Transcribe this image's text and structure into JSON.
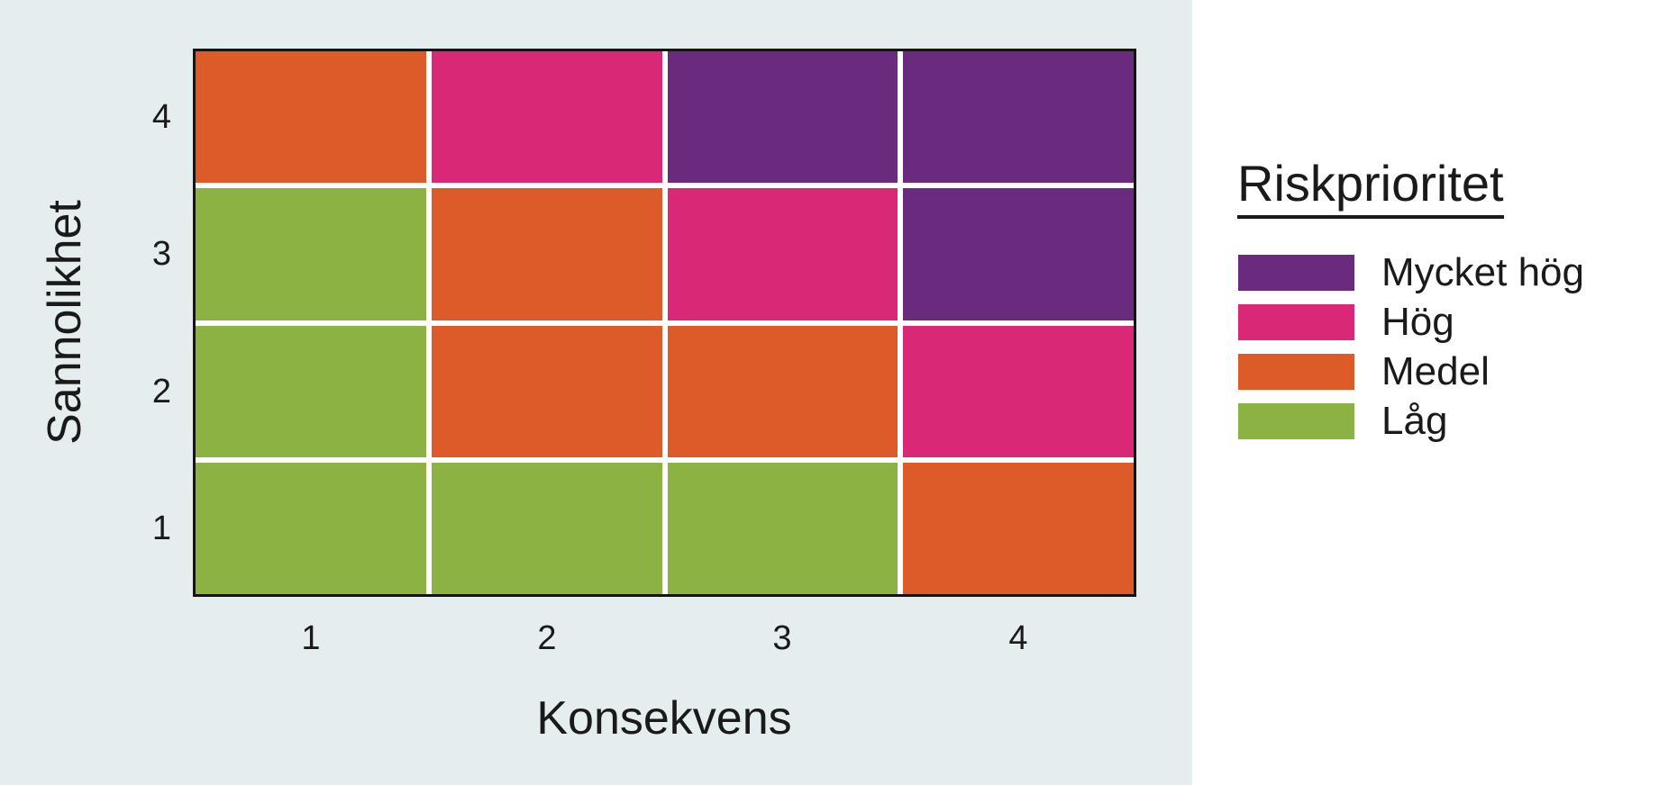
{
  "figure": {
    "background_color": "#E5EDEE",
    "panel_color": "#FFFFFF",
    "gridline_color": "#FFFFFF",
    "border_color": "#141414",
    "text_color": "#1A1A1A"
  },
  "chart_data": {
    "type": "heatmap",
    "title": "",
    "xlabel": "Konsekvens",
    "ylabel": "Sannolikhet",
    "x_ticks": [
      "1",
      "2",
      "3",
      "4"
    ],
    "y_ticks_top_to_bottom": [
      "4",
      "3",
      "2",
      "1"
    ],
    "grid": "white separators between cells, black outer frame",
    "legend": {
      "title": "Riskprioritet",
      "position": "right",
      "items": [
        {
          "label": "Mycket hög",
          "color": "#6A2A7E"
        },
        {
          "label": "Hög",
          "color": "#D92876"
        },
        {
          "label": "Medel",
          "color": "#DD5B28"
        },
        {
          "label": "Låg",
          "color": "#8BB243"
        }
      ]
    },
    "rows_top_to_bottom": [
      {
        "sannolikhet": 4,
        "priorities": [
          "Medel",
          "Hög",
          "Mycket hög",
          "Mycket hög"
        ]
      },
      {
        "sannolikhet": 3,
        "priorities": [
          "Låg",
          "Medel",
          "Hög",
          "Mycket hög"
        ]
      },
      {
        "sannolikhet": 2,
        "priorities": [
          "Låg",
          "Medel",
          "Medel",
          "Hög"
        ]
      },
      {
        "sannolikhet": 1,
        "priorities": [
          "Låg",
          "Låg",
          "Låg",
          "Medel"
        ]
      }
    ]
  }
}
